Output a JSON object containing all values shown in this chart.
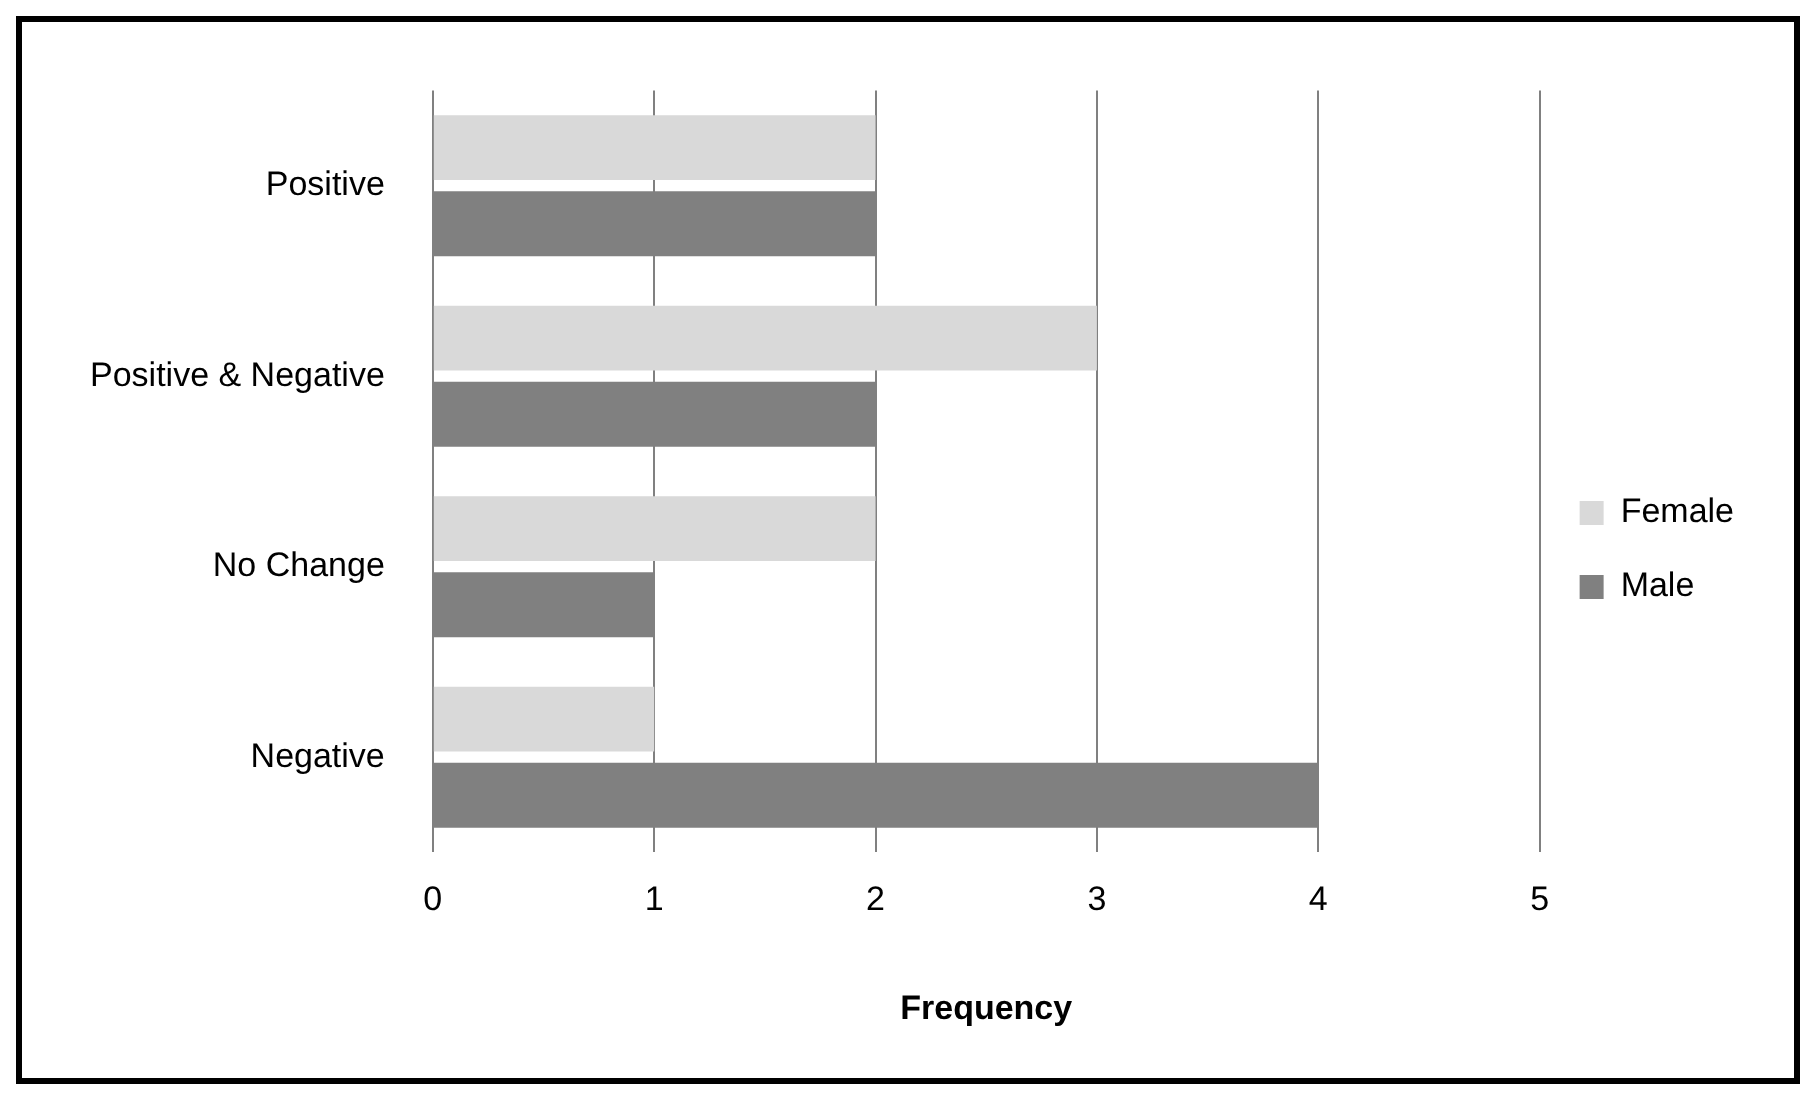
{
  "chart_data": {
    "type": "bar",
    "orientation": "horizontal",
    "xlabel": "Frequency",
    "categories": [
      "Positive",
      "Positive & Negative",
      "No Change",
      "Negative"
    ],
    "series": [
      {
        "name": "Female",
        "color": "#d9d9d9",
        "values": [
          2,
          3,
          2,
          1
        ]
      },
      {
        "name": "Male",
        "color": "#808080",
        "values": [
          2,
          2,
          1,
          4
        ]
      }
    ],
    "xlim": [
      0,
      5
    ],
    "xticks": [
      0,
      1,
      2,
      3,
      4,
      5
    ],
    "grid": "x",
    "legend": "right"
  }
}
